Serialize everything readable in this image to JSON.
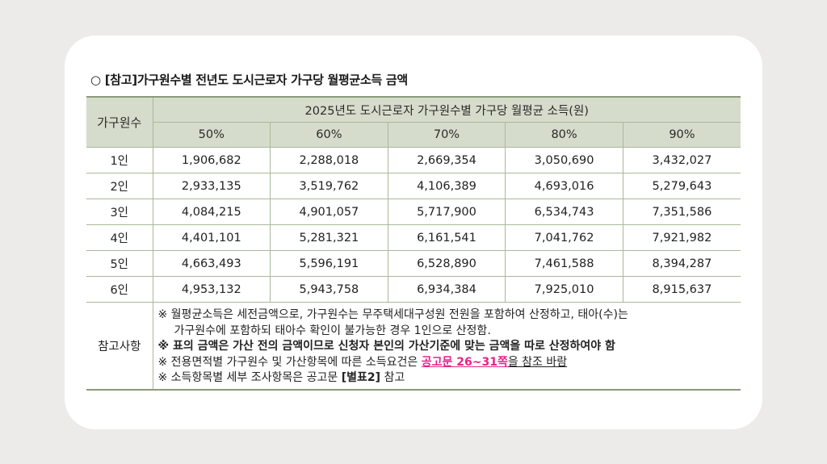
{
  "title": "○ [참고]가구원수별 전년도 도시근로자 가구당 월평균소득 금액",
  "table": {
    "corner": "가구원수",
    "group_header": "2025년도 도시근로자 가구원수별 가구당 월평균 소득(원)",
    "columns": [
      "50%",
      "60%",
      "70%",
      "80%",
      "90%"
    ],
    "rows": [
      {
        "label": "1인",
        "values": [
          "1,906,682",
          "2,288,018",
          "2,669,354",
          "3,050,690",
          "3,432,027"
        ]
      },
      {
        "label": "2인",
        "values": [
          "2,933,135",
          "3,519,762",
          "4,106,389",
          "4,693,016",
          "5,279,643"
        ]
      },
      {
        "label": "3인",
        "values": [
          "4,084,215",
          "4,901,057",
          "5,717,900",
          "6,534,743",
          "7,351,586"
        ]
      },
      {
        "label": "4인",
        "values": [
          "4,401,101",
          "5,281,321",
          "6,161,541",
          "7,041,762",
          "7,921,982"
        ]
      },
      {
        "label": "5인",
        "values": [
          "4,663,493",
          "5,596,191",
          "6,528,890",
          "7,461,588",
          "8,394,287"
        ]
      },
      {
        "label": "6인",
        "values": [
          "4,953,132",
          "5,943,758",
          "6,934,384",
          "7,925,010",
          "8,915,637"
        ]
      }
    ]
  },
  "notes": {
    "label": "참고사항",
    "note1_line1": "※ 월평균소득은 세전금액으로, 가구원수는 무주택세대구성원 전원을 포함하여 산정하고, 태아(수)는",
    "note1_line2": "가구원수에 포함하되 태아수 확인이 불가능한 경우 1인으로 산정함.",
    "note2": "※ 표의 금액은 가산 전의 금액이므로 신청자 본인의 가산기준에 맞는 금액을 따로 산정하여야 함",
    "note3_prefix": "※ 전용면적별 가구원수 및 가산항목에 따른 소득요건은 ",
    "note3_link": "공고문 26~31쪽",
    "note3_suffix": "을 참조 바람",
    "note4_prefix": "※ 소득항목별 세부 조사항목은 공고문 ",
    "note4_bold": "[별표2]",
    "note4_suffix": " 참고"
  }
}
